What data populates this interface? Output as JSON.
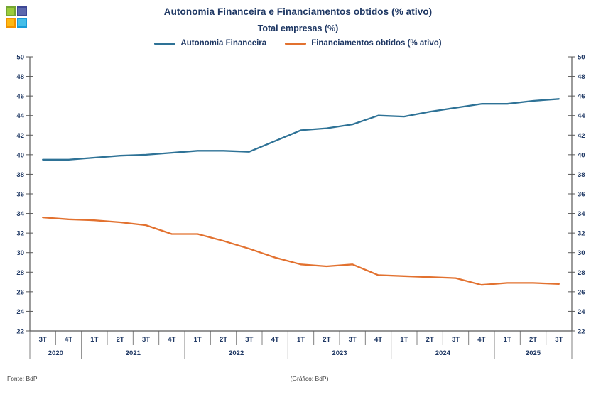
{
  "header": {
    "title": "Autonomia Financeira e Financiamentos obtidos (% ativo)",
    "subtitle": "Total empresas (%)"
  },
  "legend": {
    "items": [
      {
        "label": "Autonomia Financeira",
        "color": "#2E7296"
      },
      {
        "label": "Financiamentos obtidos (% ativo)",
        "color": "#E2712F"
      }
    ]
  },
  "footer": {
    "source": "Fonte: BdP",
    "credit": "(Gráfico: BdP)"
  },
  "logo": {
    "name": "bpstat-logo",
    "squares": [
      {
        "name": "green",
        "fill": "#9BCB3B",
        "border": "#74A533"
      },
      {
        "name": "indigo",
        "fill": "#5C68AE",
        "border": "#3D4795"
      },
      {
        "name": "amber",
        "fill": "#FDB813",
        "border": "#F19100"
      },
      {
        "name": "cyan",
        "fill": "#45BEE8",
        "border": "#179BD7"
      }
    ]
  },
  "chart_data": {
    "type": "line",
    "title": "Autonomia Financeira e Financiamentos obtidos (% ativo)",
    "subtitle": "Total empresas (%)",
    "ylim": [
      22,
      50
    ],
    "ytick_step": 2,
    "grid": false,
    "legend_position": "top",
    "y_axis_sides": "both",
    "x_groups": [
      {
        "year": "2020",
        "quarters": [
          "3T",
          "4T"
        ]
      },
      {
        "year": "2021",
        "quarters": [
          "1T",
          "2T",
          "3T",
          "4T"
        ]
      },
      {
        "year": "2022",
        "quarters": [
          "1T",
          "2T",
          "3T",
          "4T"
        ]
      },
      {
        "year": "2023",
        "quarters": [
          "1T",
          "2T",
          "3T",
          "4T"
        ]
      },
      {
        "year": "2024",
        "quarters": [
          "1T",
          "2T",
          "3T",
          "4T"
        ]
      },
      {
        "year": "2025",
        "quarters": [
          "1T",
          "2T",
          "3T"
        ]
      }
    ],
    "series": [
      {
        "name": "Autonomia Financeira",
        "color": "#2E7296",
        "values": [
          39.5,
          39.5,
          39.7,
          39.9,
          40.0,
          40.2,
          40.4,
          40.4,
          40.3,
          41.4,
          42.5,
          42.7,
          43.1,
          44.0,
          43.9,
          44.4,
          44.8,
          45.2,
          45.2,
          45.5,
          45.7
        ]
      },
      {
        "name": "Financiamentos obtidos (% ativo)",
        "color": "#E2712F",
        "values": [
          33.6,
          33.4,
          33.3,
          33.1,
          32.8,
          31.9,
          31.9,
          31.2,
          30.4,
          29.5,
          28.8,
          28.6,
          28.8,
          27.7,
          27.6,
          27.5,
          27.4,
          26.7,
          26.9,
          26.9,
          26.8
        ]
      }
    ],
    "text_color": "#1F3864",
    "axis_color": "#595959",
    "separator_color": "#808080"
  }
}
